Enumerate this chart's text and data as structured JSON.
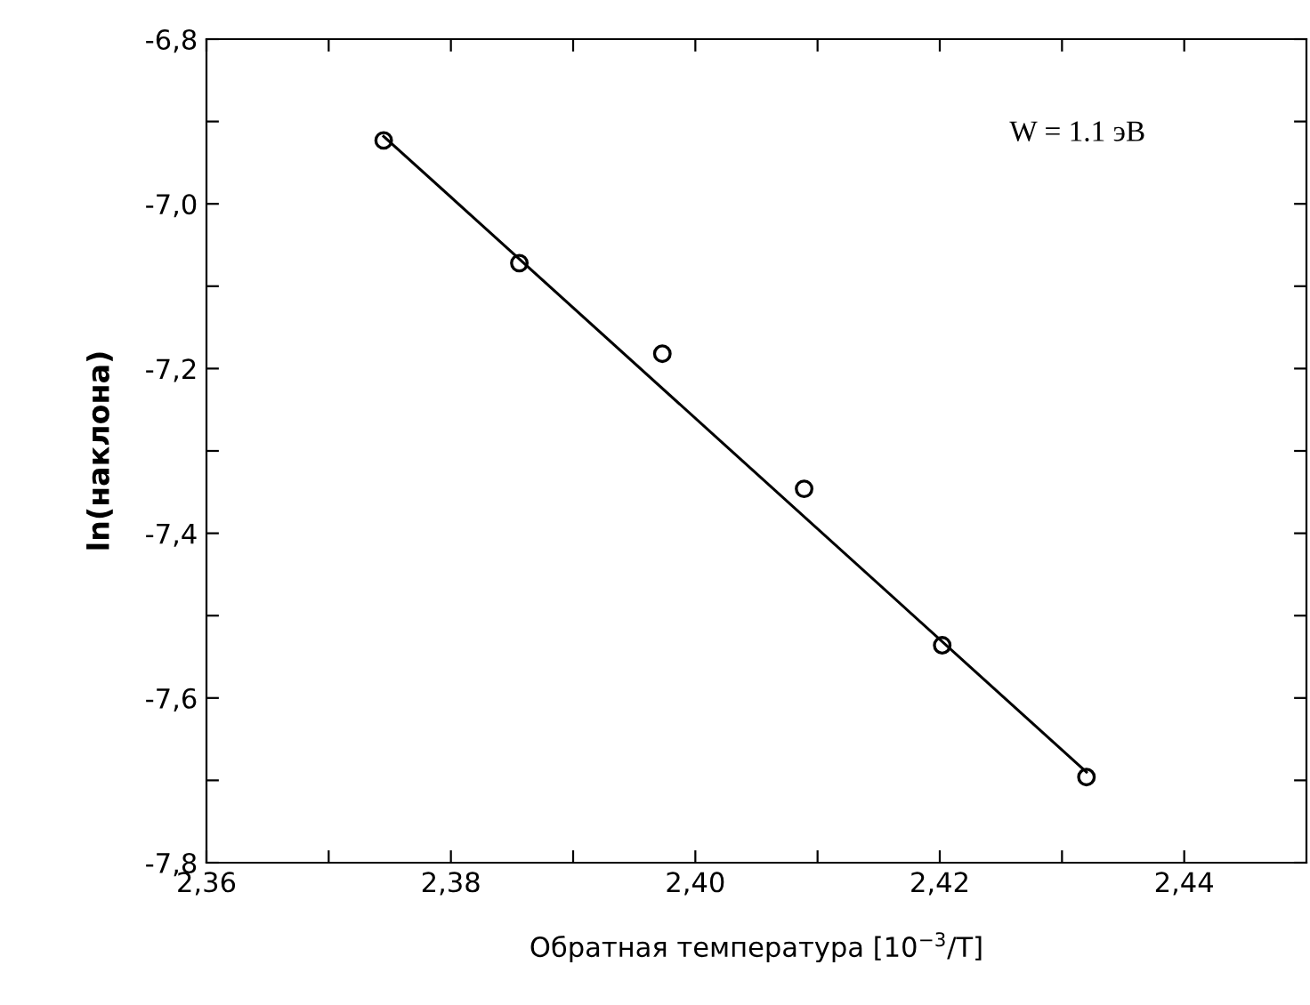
{
  "chart_data": {
    "type": "scatter",
    "xlabel": "Обратная температура [10$^{−3}$/T]",
    "ylabel": "ln(наклона)",
    "annotations": [
      "W = 1.1 эВ"
    ],
    "series": [
      {
        "color": "#000000",
        "marker": "circle",
        "x": [
          2.3745,
          2.3856,
          2.3973,
          2.4089,
          2.4202,
          2.432
        ],
        "values": [
          -6.923,
          -7.072,
          -7.182,
          -7.346,
          -7.536,
          -7.696
        ]
      },
      {
        "type": "line",
        "color": "#000000",
        "line_style": "solid",
        "x": [
          2.3745,
          2.432
        ],
        "values": [
          -6.918,
          -7.69
        ]
      }
    ],
    "xlim": [
      2.36,
      2.45
    ],
    "ylim": [
      -7.8,
      -6.8
    ],
    "xticks": [
      {
        "value": 2.36,
        "label": "2,36"
      },
      {
        "value": 2.37,
        "label": null
      },
      {
        "value": 2.38,
        "label": "2,38"
      },
      {
        "value": 2.39,
        "label": null
      },
      {
        "value": 2.4,
        "label": "2,40"
      },
      {
        "value": 2.41,
        "label": null
      },
      {
        "value": 2.42,
        "label": "2,42"
      },
      {
        "value": 2.43,
        "label": null
      },
      {
        "value": 2.44,
        "label": "2,44"
      }
    ],
    "yticks": [
      {
        "value": -7.8,
        "label": "-7,8"
      },
      {
        "value": -7.7,
        "label": null
      },
      {
        "value": -7.6,
        "label": "-7,6"
      },
      {
        "value": -7.5,
        "label": null
      },
      {
        "value": -7.4,
        "label": "-7,4"
      },
      {
        "value": -7.3,
        "label": null
      },
      {
        "value": -7.2,
        "label": "-7,2"
      },
      {
        "value": -7.1,
        "label": null
      },
      {
        "value": -7.0,
        "label": "-7,0"
      },
      {
        "value": -6.9,
        "label": null
      },
      {
        "value": -6.8,
        "label": "-6,8"
      }
    ],
    "grid": false,
    "legend": false
  }
}
